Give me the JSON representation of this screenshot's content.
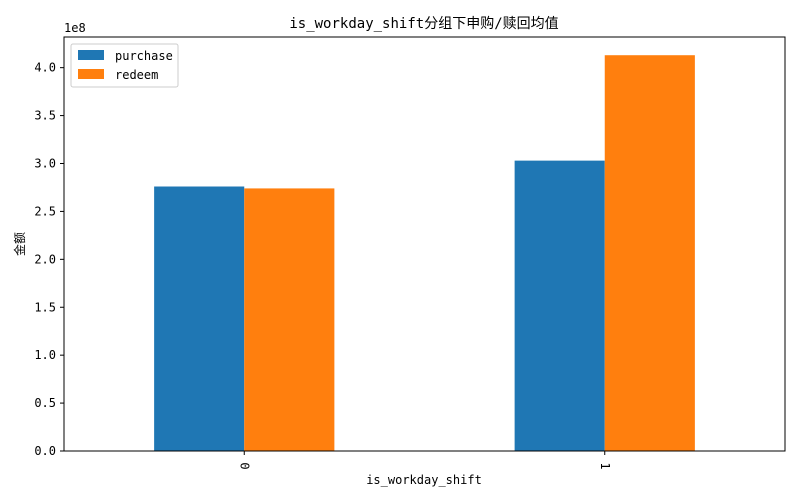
{
  "chart_data": {
    "type": "bar",
    "title": "is_workday_shift分组下申购/赎回均值",
    "xlabel": "is_workday_shift",
    "ylabel": "金额",
    "y_scale_label": "1e8",
    "categories": [
      "0",
      "1"
    ],
    "series": [
      {
        "name": "purchase",
        "color": "#1f77b4",
        "values": [
          276000000,
          303000000
        ]
      },
      {
        "name": "redeem",
        "color": "#ff7f0e",
        "values": [
          274000000,
          413000000
        ]
      }
    ],
    "ylim": [
      0,
      432000000
    ],
    "yticks": [
      0,
      50000000,
      100000000,
      150000000,
      200000000,
      250000000,
      300000000,
      350000000,
      400000000
    ],
    "ytick_labels": [
      "0.0",
      "0.5",
      "1.0",
      "1.5",
      "2.0",
      "2.5",
      "3.0",
      "3.5",
      "4.0"
    ],
    "legend_position": "top-left",
    "grid": false
  }
}
